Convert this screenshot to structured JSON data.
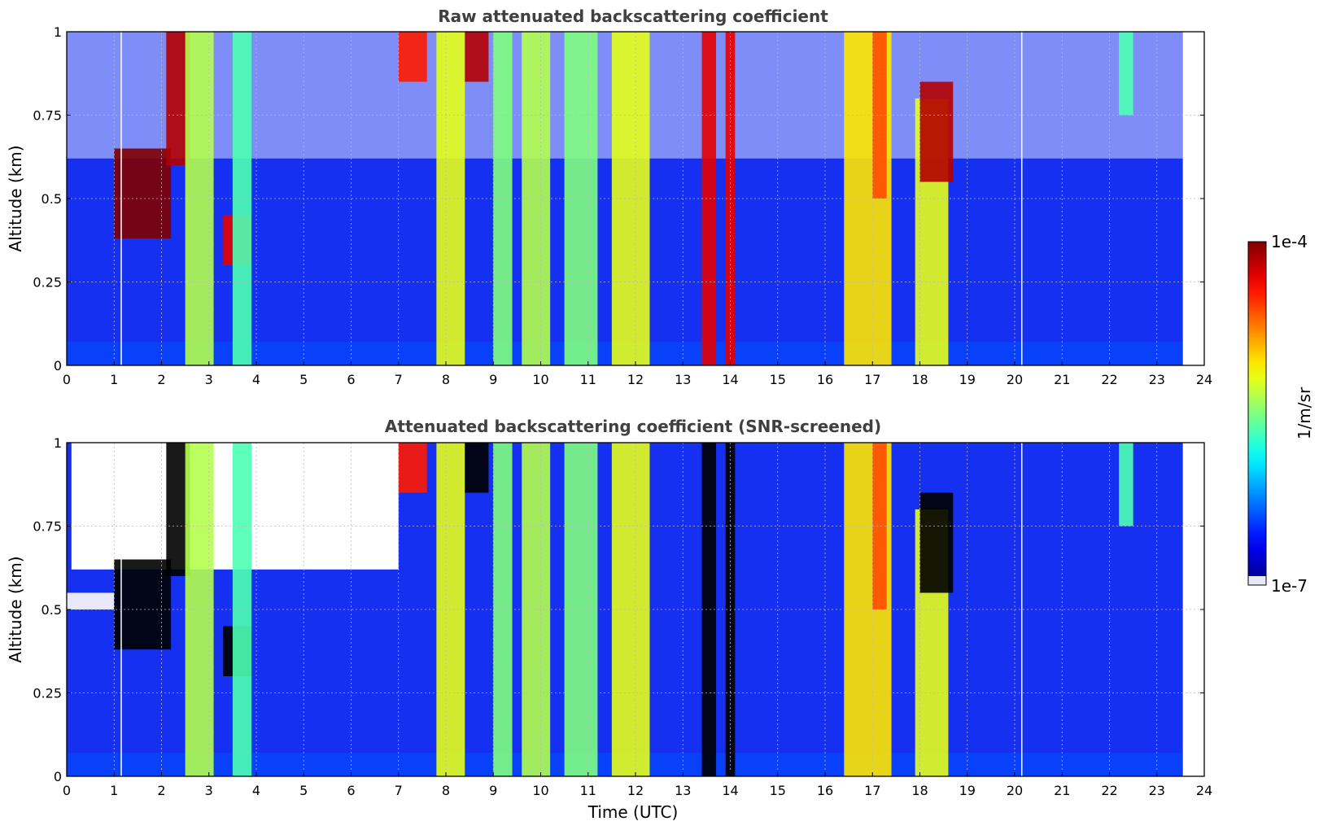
{
  "chart_data": [
    {
      "type": "heatmap",
      "title": "Raw attenuated backscattering coefficient",
      "xlabel": "",
      "ylabel": "Altitude (km)",
      "xlim": [
        0,
        24
      ],
      "ylim": [
        0,
        1
      ],
      "xticks": [
        0,
        1,
        2,
        3,
        4,
        5,
        6,
        7,
        8,
        9,
        10,
        11,
        12,
        13,
        14,
        15,
        16,
        17,
        18,
        19,
        20,
        21,
        22,
        23,
        24
      ],
      "yticks": [
        {
          "value": 0,
          "label": "0"
        },
        {
          "value": 0.25,
          "label": "0.25"
        },
        {
          "value": 0.5,
          "label": "0.5"
        },
        {
          "value": 0.75,
          "label": "0.75"
        },
        {
          "value": 1,
          "label": "1"
        }
      ],
      "data_end_time": 23.55,
      "gaps_at": [
        1.15,
        20.15
      ],
      "plumes": [
        {
          "t0": 1.0,
          "t1": 2.2,
          "bottom": 0.38,
          "top": 0.65,
          "level": 1.0
        },
        {
          "t0": 2.1,
          "t1": 2.6,
          "bottom": 0.6,
          "top": 1.0,
          "level": 0.95
        },
        {
          "t0": 2.5,
          "t1": 3.1,
          "bottom": 0.0,
          "top": 1.0,
          "level": 0.55
        },
        {
          "t0": 3.3,
          "t1": 3.9,
          "bottom": 0.3,
          "top": 0.45,
          "level": 0.9
        },
        {
          "t0": 3.5,
          "t1": 3.9,
          "bottom": 0.0,
          "top": 1.0,
          "level": 0.45
        },
        {
          "t0": 7.0,
          "t1": 7.6,
          "bottom": 0.85,
          "top": 1.0,
          "level": 0.85
        },
        {
          "t0": 7.8,
          "t1": 8.4,
          "bottom": 0.0,
          "top": 1.0,
          "level": 0.6
        },
        {
          "t0": 8.4,
          "t1": 8.9,
          "bottom": 0.85,
          "top": 1.0,
          "level": 0.95
        },
        {
          "t0": 9.0,
          "t1": 9.4,
          "bottom": 0.0,
          "top": 1.0,
          "level": 0.5
        },
        {
          "t0": 9.6,
          "t1": 10.2,
          "bottom": 0.0,
          "top": 1.0,
          "level": 0.55
        },
        {
          "t0": 10.5,
          "t1": 11.2,
          "bottom": 0.0,
          "top": 1.0,
          "level": 0.5
        },
        {
          "t0": 11.5,
          "t1": 12.3,
          "bottom": 0.0,
          "top": 1.0,
          "level": 0.6
        },
        {
          "t0": 13.4,
          "t1": 13.7,
          "bottom": 0.0,
          "top": 1.0,
          "level": 0.9
        },
        {
          "t0": 13.9,
          "t1": 14.1,
          "bottom": 0.0,
          "top": 1.0,
          "level": 0.9
        },
        {
          "t0": 16.4,
          "t1": 17.4,
          "bottom": 0.0,
          "top": 1.0,
          "level": 0.65
        },
        {
          "t0": 17.0,
          "t1": 17.3,
          "bottom": 0.5,
          "top": 1.0,
          "level": 0.8
        },
        {
          "t0": 17.9,
          "t1": 18.6,
          "bottom": 0.0,
          "top": 0.8,
          "level": 0.6
        },
        {
          "t0": 18.0,
          "t1": 18.7,
          "bottom": 0.55,
          "top": 0.85,
          "level": 0.95
        },
        {
          "t0": 22.2,
          "t1": 22.5,
          "bottom": 0.75,
          "top": 1.0,
          "level": 0.45
        }
      ]
    },
    {
      "type": "heatmap",
      "title": "Attenuated backscattering coefficient (SNR-screened)",
      "xlabel": "Time (UTC)",
      "ylabel": "Altitude (km)",
      "xlim": [
        0,
        24
      ],
      "ylim": [
        0,
        1
      ],
      "xticks": [
        0,
        1,
        2,
        3,
        4,
        5,
        6,
        7,
        8,
        9,
        10,
        11,
        12,
        13,
        14,
        15,
        16,
        17,
        18,
        19,
        20,
        21,
        22,
        23,
        24
      ],
      "yticks": [
        {
          "value": 0,
          "label": "0"
        },
        {
          "value": 0.25,
          "label": "0.25"
        },
        {
          "value": 0.5,
          "label": "0.5"
        },
        {
          "value": 0.75,
          "label": "0.75"
        },
        {
          "value": 1,
          "label": "1"
        }
      ],
      "data_end_time": 23.55,
      "gaps_at": [
        1.15,
        20.15
      ],
      "saturated_color": "#000000"
    }
  ],
  "colorbar": {
    "label": "1/m/sr",
    "max_label": "1e-4",
    "min_label": "1e-7",
    "colormap": "jet",
    "low_color": "#e8e8f8"
  },
  "colors": {
    "background": "#ffffff",
    "title": "#404040",
    "grid": "#bbbbbb",
    "base_blue": "#1530f0"
  }
}
